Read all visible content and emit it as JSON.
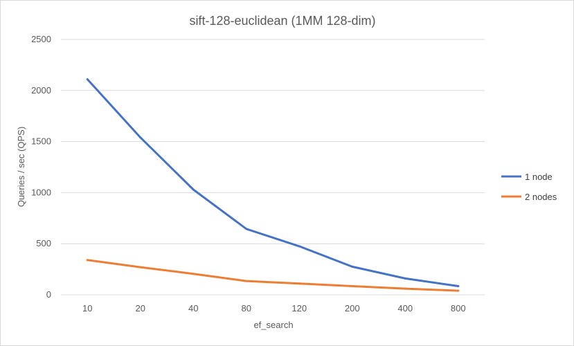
{
  "chart_data": {
    "type": "line",
    "title": "sift-128-euclidean (1MM 128-dim)",
    "xlabel": "ef_search",
    "ylabel": "Queries / sec (QPS)",
    "categories": [
      "10",
      "20",
      "40",
      "80",
      "120",
      "200",
      "400",
      "800"
    ],
    "ylim": [
      0,
      2500
    ],
    "yticks": [
      0,
      500,
      1000,
      1500,
      2000,
      2500
    ],
    "grid": true,
    "legend": "right",
    "series": [
      {
        "name": "1 node",
        "color": "#4472c4",
        "values": [
          2110,
          1540,
          1030,
          645,
          475,
          275,
          160,
          85
        ]
      },
      {
        "name": "2 nodes",
        "color": "#ed7d31",
        "values": [
          340,
          270,
          205,
          135,
          110,
          85,
          60,
          40
        ]
      }
    ]
  }
}
